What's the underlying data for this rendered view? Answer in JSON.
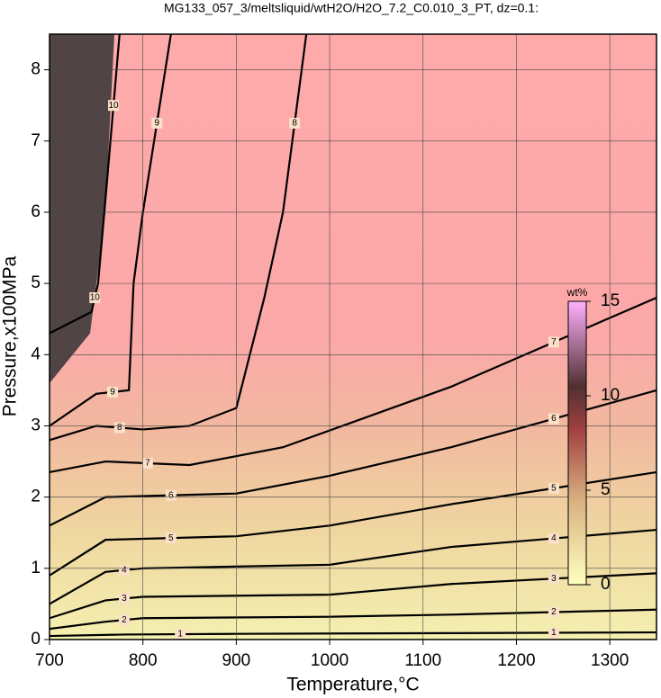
{
  "chart_data": {
    "type": "contour",
    "title": "MG133_057_3/meltsliquid/wtH2O/H2O_7.2_C0.010_3_PT, dz=0.1:",
    "x_label": "Temperature,°C",
    "y_label": "Pressure,x100MPa",
    "xlim": [
      700,
      1350
    ],
    "ylim": [
      0,
      8.5
    ],
    "xticks": [
      700,
      800,
      900,
      1000,
      1100,
      1200,
      1300
    ],
    "yticks": [
      0,
      1,
      2,
      3,
      4,
      5,
      6,
      7,
      8
    ],
    "grid": true,
    "contours": [
      {
        "level": 1,
        "x": [
          700,
          780,
          900,
          1130,
          1350
        ],
        "y": [
          0.05,
          0.07,
          0.08,
          0.09,
          0.1
        ]
      },
      {
        "level": 2,
        "x": [
          700,
          760,
          800,
          1000,
          1130,
          1350
        ],
        "y": [
          0.15,
          0.25,
          0.3,
          0.32,
          0.35,
          0.42
        ]
      },
      {
        "level": 3,
        "x": [
          700,
          760,
          800,
          1000,
          1130,
          1350
        ],
        "y": [
          0.3,
          0.55,
          0.6,
          0.63,
          0.78,
          0.93
        ]
      },
      {
        "level": 4,
        "x": [
          700,
          760,
          800,
          1000,
          1130,
          1350
        ],
        "y": [
          0.5,
          0.95,
          1.0,
          1.05,
          1.3,
          1.54
        ]
      },
      {
        "level": 5,
        "x": [
          700,
          760,
          900,
          1000,
          1130,
          1350
        ],
        "y": [
          0.9,
          1.4,
          1.45,
          1.6,
          1.9,
          2.35
        ]
      },
      {
        "level": 6,
        "x": [
          700,
          760,
          900,
          1000,
          1130,
          1350
        ],
        "y": [
          1.6,
          2.0,
          2.05,
          2.3,
          2.7,
          3.5
        ]
      },
      {
        "level": 7,
        "x": [
          700,
          760,
          850,
          950,
          1130,
          1350
        ],
        "y": [
          2.35,
          2.5,
          2.45,
          2.7,
          3.55,
          4.8
        ]
      },
      {
        "level": 8,
        "x": [
          700,
          750,
          800,
          850,
          900,
          930,
          950,
          975
        ],
        "y": [
          2.8,
          3.0,
          2.95,
          3.0,
          3.25,
          4.8,
          6.0,
          8.5
        ]
      },
      {
        "level": 9,
        "x": [
          700,
          750,
          785,
          790,
          800,
          830
        ],
        "y": [
          3.0,
          3.45,
          3.5,
          5.0,
          6.0,
          8.5
        ]
      },
      {
        "level": 10,
        "x": [
          700,
          745,
          752,
          762,
          775
        ],
        "y": [
          4.3,
          4.6,
          5.0,
          6.5,
          8.5
        ]
      }
    ],
    "colorbar": {
      "label": "wt%",
      "clim": [
        0,
        15
      ],
      "ticks": [
        0,
        5,
        10,
        15
      ]
    }
  }
}
